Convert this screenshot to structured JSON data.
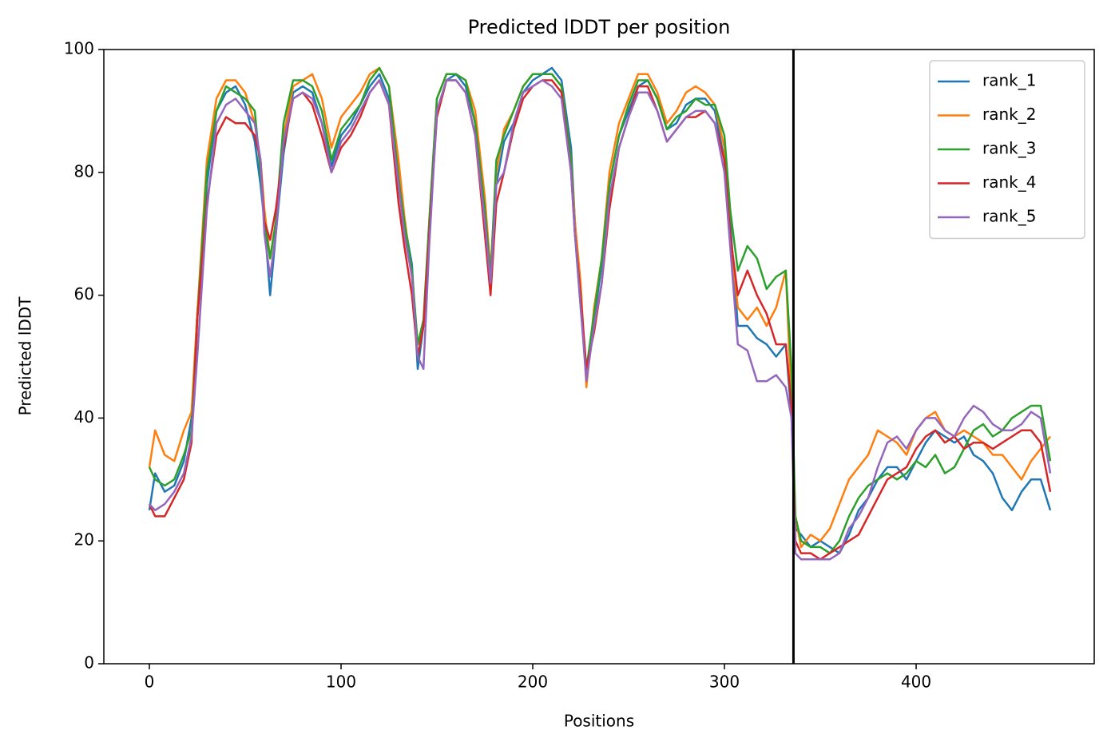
{
  "chart_data": {
    "type": "line",
    "title": "Predicted lDDT per position",
    "xlabel": "Positions",
    "ylabel": "Predicted lDDT",
    "x": [
      0,
      3,
      8,
      13,
      18,
      22,
      25,
      30,
      35,
      40,
      45,
      50,
      55,
      58,
      60,
      63,
      66,
      70,
      75,
      80,
      85,
      90,
      95,
      100,
      105,
      110,
      115,
      120,
      125,
      130,
      133,
      137,
      140,
      143,
      146,
      150,
      155,
      160,
      165,
      170,
      175,
      178,
      181,
      185,
      190,
      195,
      200,
      205,
      210,
      215,
      220,
      222,
      225,
      228,
      232,
      236,
      240,
      245,
      250,
      255,
      260,
      265,
      270,
      275,
      280,
      285,
      290,
      295,
      300,
      303,
      307,
      312,
      317,
      322,
      327,
      332,
      335,
      337,
      340,
      345,
      350,
      355,
      360,
      365,
      370,
      375,
      380,
      385,
      390,
      395,
      400,
      405,
      410,
      415,
      420,
      425,
      430,
      435,
      440,
      445,
      450,
      455,
      460,
      465,
      470
    ],
    "series": [
      {
        "name": "rank_1",
        "color": "#1f77b4",
        "values": [
          25,
          31,
          28,
          29,
          33,
          40,
          57,
          78,
          90,
          93,
          94,
          91,
          85,
          78,
          72,
          60,
          70,
          83,
          93,
          94,
          93,
          88,
          81,
          86,
          88,
          91,
          94,
          96,
          92,
          80,
          72,
          65,
          48,
          55,
          70,
          90,
          95,
          96,
          94,
          88,
          72,
          62,
          78,
          85,
          88,
          93,
          95,
          96,
          97,
          95,
          84,
          72,
          60,
          46,
          56,
          65,
          78,
          86,
          90,
          94,
          95,
          92,
          87,
          88,
          91,
          92,
          92,
          90,
          82,
          72,
          55,
          55,
          53,
          52,
          50,
          52,
          40,
          22,
          21,
          19,
          20,
          19,
          18,
          21,
          25,
          27,
          30,
          32,
          32,
          30,
          33,
          36,
          38,
          37,
          36,
          37,
          34,
          33,
          31,
          27,
          25,
          28,
          30,
          30,
          25
        ]
      },
      {
        "name": "rank_2",
        "color": "#ff7f0e",
        "values": [
          32,
          38,
          34,
          33,
          38,
          41,
          57,
          82,
          92,
          95,
          95,
          93,
          88,
          82,
          74,
          66,
          72,
          86,
          94,
          95,
          96,
          92,
          84,
          89,
          91,
          93,
          96,
          97,
          94,
          82,
          73,
          63,
          52,
          55,
          72,
          92,
          96,
          96,
          95,
          90,
          76,
          64,
          80,
          87,
          90,
          94,
          96,
          96,
          96,
          94,
          82,
          72,
          62,
          45,
          58,
          66,
          80,
          88,
          92,
          96,
          96,
          93,
          88,
          90,
          93,
          94,
          93,
          91,
          84,
          70,
          58,
          56,
          58,
          55,
          58,
          64,
          42,
          24,
          19,
          21,
          20,
          22,
          26,
          30,
          32,
          34,
          38,
          37,
          36,
          34,
          38,
          40,
          41,
          38,
          37,
          38,
          37,
          36,
          34,
          34,
          32,
          30,
          33,
          35,
          37
        ]
      },
      {
        "name": "rank_3",
        "color": "#2ca02c",
        "values": [
          32,
          30,
          29,
          30,
          34,
          38,
          56,
          80,
          90,
          94,
          93,
          92,
          90,
          80,
          72,
          66,
          72,
          88,
          95,
          95,
          94,
          90,
          82,
          87,
          89,
          91,
          95,
          97,
          94,
          79,
          72,
          64,
          52,
          56,
          72,
          92,
          96,
          96,
          95,
          88,
          74,
          63,
          82,
          86,
          90,
          94,
          96,
          96,
          96,
          94,
          82,
          70,
          58,
          48,
          57,
          66,
          78,
          86,
          91,
          95,
          95,
          92,
          87,
          89,
          90,
          92,
          91,
          91,
          86,
          74,
          64,
          68,
          66,
          61,
          63,
          64,
          48,
          24,
          20,
          19,
          19,
          18,
          20,
          24,
          27,
          29,
          30,
          31,
          30,
          31,
          33,
          32,
          34,
          31,
          32,
          35,
          38,
          39,
          37,
          38,
          40,
          41,
          42,
          42,
          33
        ]
      },
      {
        "name": "rank_4",
        "color": "#d62728",
        "values": [
          26,
          24,
          24,
          27,
          30,
          36,
          56,
          75,
          86,
          89,
          88,
          88,
          86,
          82,
          72,
          69,
          74,
          84,
          92,
          93,
          91,
          86,
          80,
          84,
          86,
          89,
          93,
          95,
          91,
          75,
          68,
          60,
          50,
          55,
          70,
          89,
          95,
          95,
          93,
          86,
          70,
          60,
          75,
          80,
          87,
          92,
          94,
          95,
          95,
          93,
          80,
          70,
          60,
          48,
          54,
          62,
          74,
          84,
          89,
          94,
          94,
          90,
          85,
          87,
          89,
          89,
          90,
          88,
          82,
          70,
          60,
          64,
          60,
          57,
          52,
          52,
          42,
          20,
          18,
          18,
          17,
          18,
          19,
          20,
          21,
          24,
          27,
          30,
          31,
          32,
          35,
          37,
          38,
          36,
          37,
          35,
          36,
          36,
          35,
          36,
          37,
          38,
          38,
          36,
          28
        ]
      },
      {
        "name": "rank_5",
        "color": "#9467bd",
        "values": [
          26,
          25,
          26,
          28,
          31,
          37,
          50,
          74,
          88,
          91,
          92,
          90,
          88,
          82,
          70,
          63,
          70,
          85,
          92,
          93,
          92,
          88,
          80,
          85,
          87,
          90,
          93,
          95,
          91,
          78,
          70,
          63,
          50,
          48,
          68,
          90,
          95,
          95,
          93,
          86,
          72,
          62,
          78,
          80,
          88,
          93,
          94,
          95,
          94,
          92,
          80,
          70,
          58,
          46,
          55,
          62,
          76,
          84,
          89,
          93,
          93,
          90,
          85,
          87,
          89,
          90,
          90,
          88,
          80,
          68,
          52,
          51,
          46,
          46,
          47,
          45,
          40,
          18,
          17,
          17,
          17,
          17,
          18,
          22,
          24,
          27,
          32,
          36,
          37,
          35,
          38,
          40,
          40,
          38,
          37,
          40,
          42,
          41,
          39,
          38,
          38,
          39,
          41,
          40,
          31
        ]
      }
    ],
    "vline": 336,
    "vline_color": "#000000",
    "xlim": [
      -23.75,
      492.9
    ],
    "xticks": [
      0,
      100,
      200,
      300,
      400
    ],
    "ylim": [
      0,
      100
    ],
    "yticks": [
      0,
      20,
      40,
      60,
      80,
      100
    ],
    "grid": false,
    "legend": "upper right"
  }
}
